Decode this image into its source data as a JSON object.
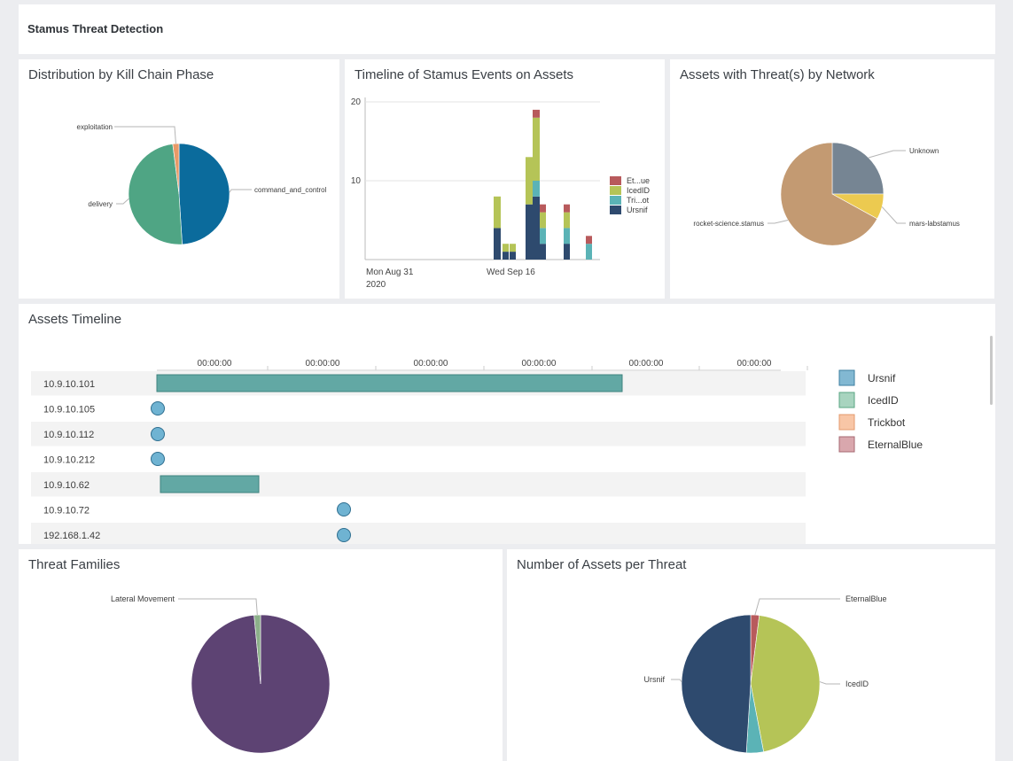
{
  "header": {
    "title": "Stamus Threat Detection"
  },
  "kill_chain": {
    "title": "Distribution by Kill Chain Phase",
    "chart_data": {
      "type": "pie",
      "slices": [
        {
          "label": "command_and_control",
          "value": 49,
          "color": "#0b6b9c"
        },
        {
          "label": "delivery",
          "value": 49,
          "color": "#4fa584"
        },
        {
          "label": "exploitation",
          "value": 2,
          "color": "#e99a67"
        }
      ]
    }
  },
  "events_timeline": {
    "title": "Timeline of Stamus Events on Assets",
    "chart_data": {
      "type": "bar",
      "stacked": true,
      "ylim": [
        0,
        20
      ],
      "yticks": [
        10,
        20
      ],
      "xtick_labels": [
        {
          "line1": "Mon Aug 31",
          "line2": "2020"
        },
        {
          "line1": "Wed Sep 16",
          "line2": ""
        }
      ],
      "series": [
        {
          "name": "Ursnif",
          "color": "#2e4a6e",
          "values": [
            4,
            1,
            1,
            7,
            8,
            2,
            2,
            2,
            0
          ]
        },
        {
          "name": "Tri...ot",
          "color": "#5bb3b6",
          "values": [
            0,
            0,
            0,
            0,
            2,
            2,
            2,
            2,
            2
          ]
        },
        {
          "name": "IcedID",
          "color": "#b5c457",
          "values": [
            4,
            1,
            1,
            6,
            8,
            2,
            0,
            2,
            0
          ]
        },
        {
          "name": "Et...ue",
          "color": "#b85a5c",
          "values": [
            0,
            0,
            0,
            0,
            1,
            1,
            0,
            1,
            1
          ]
        }
      ]
    }
  },
  "network": {
    "title": "Assets with Threat(s) by Network",
    "chart_data": {
      "type": "pie",
      "slices": [
        {
          "label": "Unknown",
          "value": 25,
          "color": "#768593"
        },
        {
          "label": "mars-labstamus",
          "value": 8,
          "color": "#ecca50"
        },
        {
          "label": "rocket-science.stamus",
          "value": 67,
          "color": "#c39a72"
        }
      ]
    }
  },
  "assets_timeline": {
    "title": "Assets Timeline",
    "tick_labels": [
      "00:00:00",
      "00:00:00",
      "00:00:00",
      "00:00:00",
      "00:00:00",
      "00:00:00"
    ],
    "rows": [
      "10.9.10.101",
      "10.9.10.105",
      "10.9.10.112",
      "10.9.10.212",
      "10.9.10.62",
      "10.9.10.72",
      "192.168.1.42"
    ],
    "legend": [
      {
        "label": "Ursnif",
        "color": "#82b8d2",
        "stroke": "#3e7fa0"
      },
      {
        "label": "IcedID",
        "color": "#a8d4bf",
        "stroke": "#5aa683"
      },
      {
        "label": "Trickbot",
        "color": "#f8c6a6",
        "stroke": "#e39a6d"
      },
      {
        "label": "EternalBlue",
        "color": "#d9a7ad",
        "stroke": "#a66872"
      }
    ]
  },
  "threat_families": {
    "title": "Threat Families",
    "chart_data": {
      "type": "pie",
      "slices": [
        {
          "label": "",
          "value": 98.5,
          "color": "#5d4373"
        },
        {
          "label": "Lateral Movement",
          "value": 1.5,
          "color": "#8cb08a"
        }
      ]
    }
  },
  "assets_per_threat": {
    "title": "Number of Assets per Threat",
    "chart_data": {
      "type": "pie",
      "slices": [
        {
          "label": "EternalBlue",
          "value": 2,
          "color": "#b85a5c"
        },
        {
          "label": "IcedID",
          "value": 45,
          "color": "#b5c457"
        },
        {
          "label": "",
          "value": 4,
          "color": "#5bb3b6"
        },
        {
          "label": "Ursnif",
          "value": 49,
          "color": "#2e4a6e"
        }
      ]
    }
  }
}
